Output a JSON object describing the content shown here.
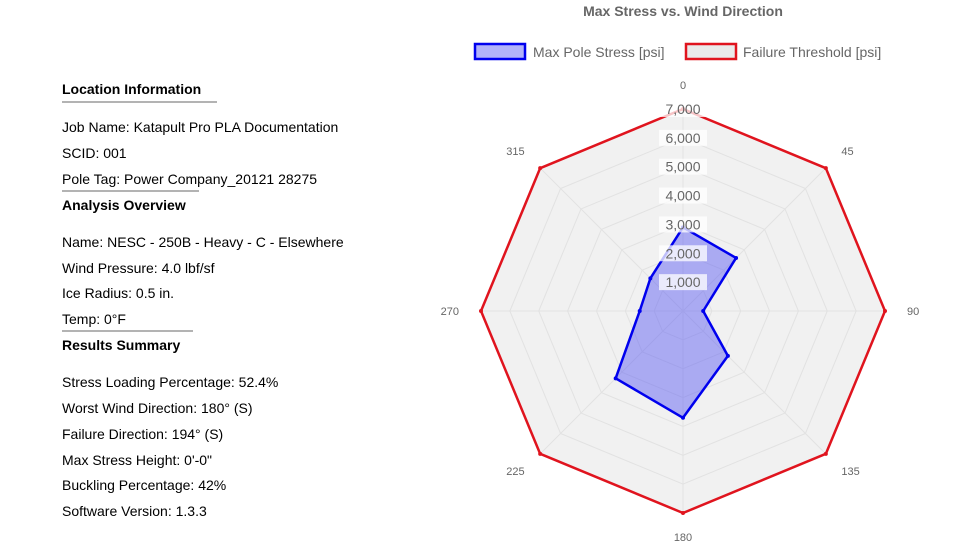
{
  "sections": [
    {
      "title": "Location Information",
      "items": [
        "Job Name: Katapult Pro PLA Documentation",
        "SCID: 001",
        "Pole Tag: Power Company_20121 28275"
      ]
    },
    {
      "title": "Analysis Overview",
      "items": [
        "Name: NESC - 250B - Heavy - C - Elsewhere",
        "Wind Pressure: 4.0 lbf/sf",
        "Ice Radius: 0.5 in.",
        "Temp: 0°F"
      ]
    },
    {
      "title": "Results Summary",
      "items": [
        "Stress Loading Percentage: 52.4%",
        "Worst Wind Direction: 180° (S)",
        "Failure Direction: 194° (S)",
        "Max Stress Height: 0'-0\"",
        "Buckling Percentage: 42%",
        "Software Version: 1.3.3"
      ]
    }
  ],
  "chart_data": {
    "type": "radar",
    "title": "Max Stress vs. Wind Direction",
    "categories": [
      "0",
      "45",
      "90",
      "135",
      "180",
      "225",
      "270",
      "315"
    ],
    "rlim": [
      0,
      7000
    ],
    "ticks": [
      "1,000",
      "2,000",
      "3,000",
      "4,000",
      "5,000",
      "6,000",
      "7,000"
    ],
    "legend_position": "top",
    "series": [
      {
        "name": "Max Pole Stress [psi]",
        "values": [
          2900,
          2600,
          700,
          2200,
          3700,
          3300,
          1500,
          1600
        ],
        "stroke": "#0000ee",
        "fill": "rgba(85,85,245,0.45)"
      },
      {
        "name": "Failure Threshold [psi]",
        "values": [
          7000,
          7000,
          7000,
          7000,
          7000,
          7000,
          7000,
          7000
        ],
        "stroke": "#e0141e",
        "fill": "rgba(220,220,220,0.4)"
      }
    ]
  }
}
